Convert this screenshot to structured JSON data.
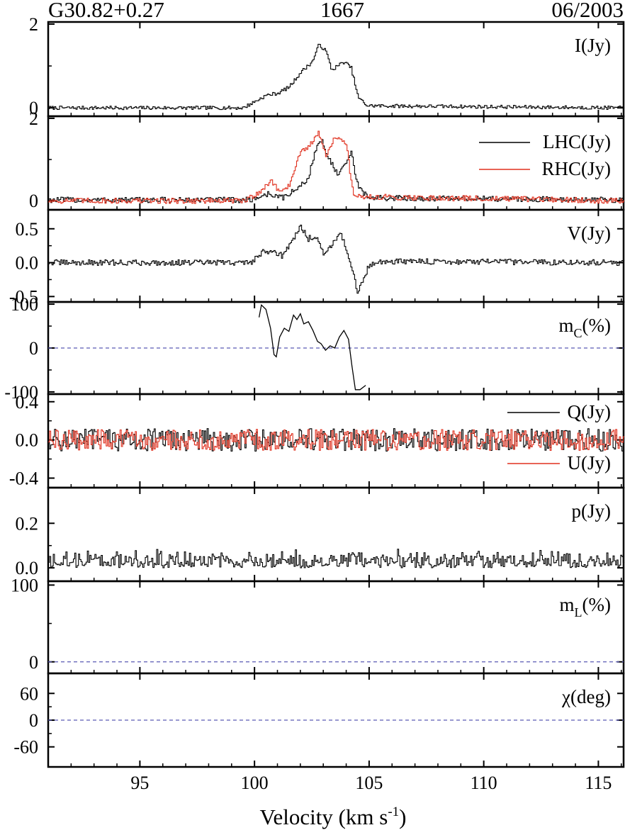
{
  "header": {
    "source": "G30.82+0.27",
    "frequency": "1667",
    "epoch": "06/2003"
  },
  "chart_data": {
    "type": "line",
    "xlabel": "Velocity (km s",
    "xlabel_sup": "-1",
    "xlabel_tail": ")",
    "xlim": [
      91.0,
      116.1
    ],
    "xticks": [
      95,
      100,
      105,
      110,
      115
    ],
    "panels": [
      {
        "id": "I",
        "label": "I(Jy)",
        "ylim": [
          -0.2,
          2.05
        ],
        "yticks": [
          0,
          2
        ],
        "ytick_labels": [
          "0",
          "2"
        ],
        "series": [
          {
            "color": "#000000",
            "noise": 0.025,
            "baseline": 0.0,
            "profile": [
              [
                91,
                0.0
              ],
              [
                99.5,
                0.0
              ],
              [
                100.0,
                0.15
              ],
              [
                100.5,
                0.3
              ],
              [
                101.0,
                0.35
              ],
              [
                101.5,
                0.5
              ],
              [
                102.0,
                0.85
              ],
              [
                102.5,
                1.1
              ],
              [
                102.8,
                1.52
              ],
              [
                103.1,
                1.35
              ],
              [
                103.35,
                0.9
              ],
              [
                103.6,
                1.0
              ],
              [
                103.9,
                1.1
              ],
              [
                104.2,
                0.95
              ],
              [
                104.5,
                0.25
              ],
              [
                104.9,
                0.05
              ],
              [
                116.1,
                0.0
              ]
            ]
          }
        ]
      },
      {
        "id": "LR",
        "label": "",
        "ylim": [
          -0.22,
          2.05
        ],
        "yticks": [
          0,
          2
        ],
        "ytick_labels": [
          "0",
          "2"
        ],
        "legend": [
          {
            "name": "LHC(Jy)",
            "color": "#000000"
          },
          {
            "name": "RHC(Jy)",
            "color": "#e0301e"
          }
        ],
        "series": [
          {
            "color": "#000000",
            "noise": 0.04,
            "baseline": 0.02,
            "profile": [
              [
                91,
                0.0
              ],
              [
                99.8,
                0.0
              ],
              [
                100.6,
                0.15
              ],
              [
                101.2,
                0.05
              ],
              [
                101.8,
                0.25
              ],
              [
                102.3,
                0.5
              ],
              [
                102.7,
                1.3
              ],
              [
                102.9,
                1.45
              ],
              [
                103.2,
                1.05
              ],
              [
                103.6,
                0.6
              ],
              [
                103.9,
                0.8
              ],
              [
                104.2,
                1.15
              ],
              [
                104.5,
                0.3
              ],
              [
                105.0,
                0.05
              ],
              [
                116.1,
                0.0
              ]
            ]
          },
          {
            "color": "#e0301e",
            "noise": 0.04,
            "baseline": 0.0,
            "profile": [
              [
                91,
                0.0
              ],
              [
                99.6,
                0.0
              ],
              [
                100.4,
                0.3
              ],
              [
                100.7,
                0.5
              ],
              [
                101.0,
                0.25
              ],
              [
                101.5,
                0.35
              ],
              [
                101.9,
                1.1
              ],
              [
                102.2,
                1.25
              ],
              [
                102.5,
                1.4
              ],
              [
                102.8,
                1.65
              ],
              [
                103.1,
                1.1
              ],
              [
                103.4,
                1.45
              ],
              [
                103.7,
                1.55
              ],
              [
                104.0,
                1.3
              ],
              [
                104.3,
                0.1
              ],
              [
                116.1,
                0.0
              ]
            ]
          }
        ]
      },
      {
        "id": "V",
        "label": "V(Jy)",
        "ylim": [
          -0.58,
          0.78
        ],
        "yticks": [
          0.5,
          0.0,
          -0.5
        ],
        "ytick_labels": [
          "0.5",
          "0.0",
          "-0.5"
        ],
        "series": [
          {
            "color": "#000000",
            "noise": 0.025,
            "baseline": 0.0,
            "profile": [
              [
                91,
                0.0
              ],
              [
                99.8,
                0.0
              ],
              [
                100.3,
                0.15
              ],
              [
                100.8,
                0.18
              ],
              [
                101.2,
                0.1
              ],
              [
                101.6,
                0.3
              ],
              [
                102.0,
                0.55
              ],
              [
                102.3,
                0.35
              ],
              [
                102.7,
                0.4
              ],
              [
                103.0,
                0.1
              ],
              [
                103.4,
                0.3
              ],
              [
                103.7,
                0.45
              ],
              [
                104.0,
                0.2
              ],
              [
                104.3,
                -0.2
              ],
              [
                104.5,
                -0.45
              ],
              [
                104.9,
                -0.1
              ],
              [
                105.3,
                0.02
              ],
              [
                116.1,
                0.0
              ]
            ]
          }
        ]
      },
      {
        "id": "mc",
        "label": "m",
        "label_sub": "C",
        "label_tail": "(%)",
        "ylim": [
          -105,
          105
        ],
        "yticks": [
          100,
          0,
          -100
        ],
        "ytick_labels": [
          "100",
          "0",
          "-100"
        ],
        "zero_dashed": true,
        "series": [
          {
            "color": "#000000",
            "noise": 0.0,
            "baseline": 0.0,
            "points": [
              [
                100.2,
                70
              ],
              [
                100.3,
                98
              ],
              [
                100.5,
                88
              ],
              [
                100.7,
                45
              ],
              [
                100.85,
                -15
              ],
              [
                100.95,
                -20
              ],
              [
                101.1,
                25
              ],
              [
                101.3,
                45
              ],
              [
                101.5,
                38
              ],
              [
                101.7,
                75
              ],
              [
                101.85,
                65
              ],
              [
                102.0,
                78
              ],
              [
                102.15,
                55
              ],
              [
                102.35,
                60
              ],
              [
                102.55,
                40
              ],
              [
                102.75,
                15
              ],
              [
                102.9,
                10
              ],
              [
                103.1,
                -5
              ],
              [
                103.3,
                5
              ],
              [
                103.5,
                0
              ],
              [
                103.7,
                25
              ],
              [
                103.9,
                40
              ],
              [
                104.1,
                20
              ],
              [
                104.25,
                -40
              ],
              [
                104.4,
                -95
              ],
              [
                104.6,
                -95
              ],
              [
                104.85,
                -85
              ]
            ]
          }
        ]
      },
      {
        "id": "QU",
        "label": "",
        "ylim": [
          -0.5,
          0.48
        ],
        "yticks": [
          0.4,
          0.0,
          -0.4
        ],
        "ytick_labels": [
          "0.4",
          "0.0",
          "-0.4"
        ],
        "legend": [
          {
            "name": "Q(Jy)",
            "color": "#000000"
          },
          {
            "name": "U(Jy)",
            "color": "#e0301e"
          }
        ],
        "series": [
          {
            "color": "#000000",
            "noise": 0.07,
            "baseline": 0.0,
            "profile": [
              [
                91,
                0
              ],
              [
                116.1,
                0
              ]
            ]
          },
          {
            "color": "#e0301e",
            "noise": 0.065,
            "baseline": 0.0,
            "profile": [
              [
                91,
                0
              ],
              [
                116.1,
                0
              ]
            ]
          }
        ]
      },
      {
        "id": "p",
        "label": "p(Jy)",
        "ylim": [
          -0.06,
          0.36
        ],
        "yticks": [
          0.2,
          0.0
        ],
        "ytick_labels": [
          "0.2",
          "0.0"
        ],
        "series": [
          {
            "color": "#000000",
            "noise": 0.03,
            "baseline": 0.02,
            "positive": true,
            "profile": [
              [
                91,
                0
              ],
              [
                116.1,
                0
              ]
            ]
          }
        ]
      },
      {
        "id": "mL",
        "label": "m",
        "label_sub": "L",
        "label_tail": "(%)",
        "ylim": [
          -15,
          105
        ],
        "yticks": [
          100,
          0
        ],
        "ytick_labels": [
          "100",
          "0"
        ],
        "zero_dashed": true,
        "series": []
      },
      {
        "id": "chi",
        "label": "χ(deg)",
        "ylim": [
          -105,
          105
        ],
        "yticks": [
          60,
          0,
          -60
        ],
        "ytick_labels": [
          "60",
          "0",
          "-60"
        ],
        "zero_dashed": true,
        "series": []
      }
    ]
  }
}
